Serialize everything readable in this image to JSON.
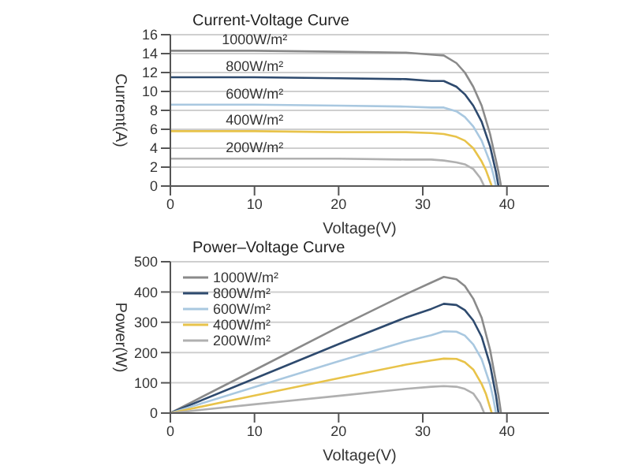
{
  "chart_data": [
    {
      "type": "line",
      "title": "Current-Voltage Curve",
      "xlabel": "Voltage(V)",
      "ylabel": "Current(A)",
      "xlim": [
        0,
        45
      ],
      "xticks": [
        0,
        10,
        20,
        30,
        40
      ],
      "ylim": [
        0,
        16
      ],
      "yticks": [
        0,
        2,
        4,
        6,
        8,
        10,
        12,
        14,
        16
      ],
      "grid": "y",
      "legend": false,
      "marker": "none",
      "line_style": "solid",
      "series": [
        {
          "name": "1000W/m²",
          "color": "#8a8a8a",
          "x": [
            0,
            10,
            20,
            28,
            31,
            32.5,
            34,
            35,
            36,
            37,
            38,
            39,
            39.3
          ],
          "values": [
            14.3,
            14.3,
            14.2,
            14.1,
            13.9,
            13.8,
            13.0,
            12.0,
            10.5,
            8.5,
            5.5,
            1.5,
            0
          ]
        },
        {
          "name": "800W/m²",
          "color": "#2e4a6e",
          "x": [
            0,
            10,
            20,
            28,
            31,
            32.5,
            34,
            35,
            36,
            37,
            38,
            38.7,
            39.0
          ],
          "values": [
            11.5,
            11.5,
            11.4,
            11.3,
            11.1,
            11.1,
            10.5,
            9.7,
            8.5,
            6.8,
            4.2,
            1.5,
            0
          ]
        },
        {
          "name": "600W/m²",
          "color": "#a9c8e0",
          "x": [
            0,
            10,
            20,
            28,
            31,
            32.5,
            34,
            35,
            36,
            37,
            38,
            38.4,
            38.7
          ],
          "values": [
            8.6,
            8.6,
            8.5,
            8.4,
            8.3,
            8.3,
            7.9,
            7.3,
            6.3,
            4.8,
            2.5,
            1.2,
            0
          ]
        },
        {
          "name": "400W/m²",
          "color": "#e8c34a",
          "x": [
            0,
            10,
            20,
            28,
            31,
            32.5,
            34,
            35,
            36,
            37,
            37.5,
            38.2
          ],
          "values": [
            5.8,
            5.8,
            5.7,
            5.7,
            5.6,
            5.5,
            5.2,
            4.8,
            4.0,
            2.6,
            1.7,
            0
          ]
        },
        {
          "name": "200W/m²",
          "color": "#b0b0b0",
          "x": [
            0,
            10,
            20,
            28,
            31,
            32.5,
            34,
            35,
            36,
            36.8,
            37.3
          ],
          "values": [
            2.9,
            2.9,
            2.9,
            2.8,
            2.8,
            2.7,
            2.5,
            2.3,
            1.8,
            0.9,
            0
          ]
        }
      ]
    },
    {
      "type": "line",
      "title": "Power–Voltage Curve",
      "xlabel": "Voltage(V)",
      "ylabel": "Power(W)",
      "xlim": [
        0,
        45
      ],
      "xticks": [
        0,
        10,
        20,
        30,
        40
      ],
      "ylim": [
        0,
        500
      ],
      "yticks": [
        0,
        100,
        200,
        300,
        400,
        500
      ],
      "grid": "y",
      "legend": "top left",
      "marker": "none",
      "line_style": "solid",
      "series": [
        {
          "name": "1000W/m²",
          "color": "#8a8a8a",
          "x": [
            0,
            10,
            20,
            28,
            31,
            32.5,
            34,
            35,
            36,
            37,
            38,
            39,
            39.3
          ],
          "values": [
            0,
            142,
            284,
            393,
            431,
            450,
            442,
            420,
            378,
            315,
            209,
            58,
            0
          ]
        },
        {
          "name": "800W/m²",
          "color": "#2e4a6e",
          "x": [
            0,
            10,
            20,
            28,
            31,
            32.5,
            34,
            35,
            36,
            37,
            38,
            38.7,
            39.0
          ],
          "values": [
            0,
            114,
            228,
            316,
            344,
            361,
            357,
            340,
            306,
            252,
            160,
            58,
            0
          ]
        },
        {
          "name": "600W/m²",
          "color": "#a9c8e0",
          "x": [
            0,
            10,
            20,
            28,
            31,
            32.5,
            34,
            35,
            36,
            37,
            38,
            38.4,
            38.7
          ],
          "values": [
            0,
            86,
            171,
            237,
            257,
            270,
            269,
            256,
            227,
            178,
            95,
            46,
            0
          ]
        },
        {
          "name": "400W/m²",
          "color": "#e8c34a",
          "x": [
            0,
            10,
            20,
            28,
            31,
            32.5,
            34,
            35,
            36,
            37,
            37.5,
            38.2
          ],
          "values": [
            0,
            58,
            115,
            160,
            174,
            180,
            179,
            168,
            144,
            96,
            64,
            0
          ]
        },
        {
          "name": "200W/m²",
          "color": "#b0b0b0",
          "x": [
            0,
            10,
            20,
            28,
            31,
            32.5,
            34,
            35,
            36,
            36.8,
            37.3
          ],
          "values": [
            0,
            29,
            57,
            80,
            87,
            89,
            87,
            80,
            65,
            33,
            0
          ]
        }
      ]
    }
  ]
}
